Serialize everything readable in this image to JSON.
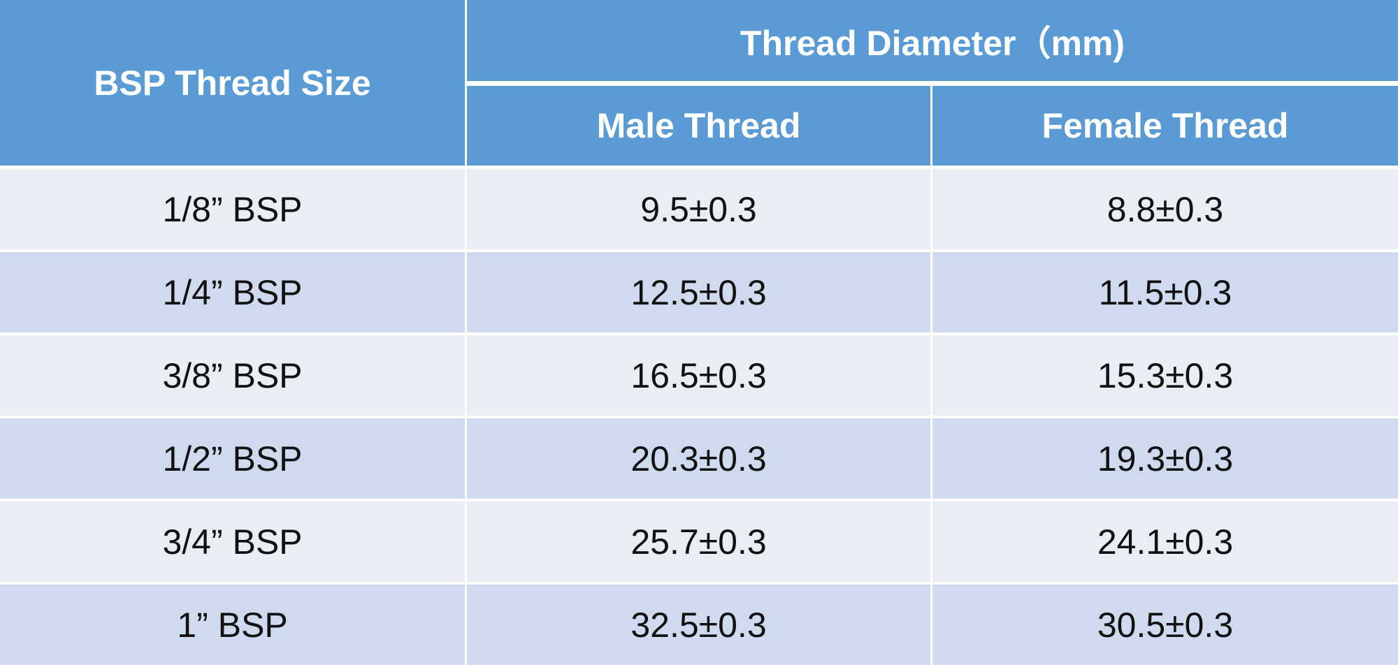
{
  "table": {
    "header": {
      "size": "BSP Thread Size",
      "diameter": "Thread Diameter（mm)",
      "male": "Male Thread",
      "female": "Female Thread"
    },
    "rows": [
      [
        "1/8” BSP",
        "9.5±0.3",
        "8.8±0.3"
      ],
      [
        "1/4” BSP",
        "12.5±0.3",
        "11.5±0.3"
      ],
      [
        "3/8” BSP",
        "16.5±0.3",
        "15.3±0.3"
      ],
      [
        "1/2” BSP",
        "20.3±0.3",
        "19.3±0.3"
      ],
      [
        "3/4” BSP",
        "25.7±0.3",
        "24.1±0.3"
      ],
      [
        "1” BSP",
        "32.5±0.3",
        "30.5±0.3"
      ]
    ]
  }
}
